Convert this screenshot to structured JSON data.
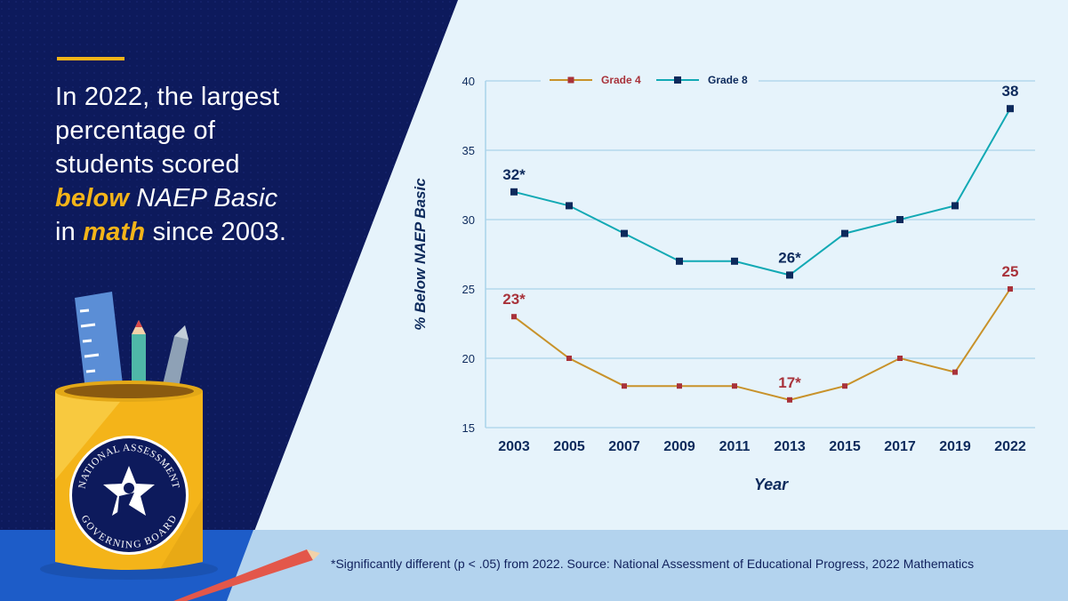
{
  "headline": {
    "line1": "In 2022, the largest",
    "line2": "percentage of",
    "line3": "students scored",
    "below_word": "below",
    "naep_basic": " NAEP Basic",
    "in_word": "in ",
    "math_word": "math",
    "since": " since 2003."
  },
  "logo": {
    "top_text": "NATIONAL ASSESSMENT",
    "bottom_text": "GOVERNING BOARD"
  },
  "footnote": "*Significantly different (p < .05) from 2022.  Source: National Assessment of Educational Progress, 2022 Mathematics",
  "colors": {
    "navy": "#0d1a5c",
    "gold": "#f4b419",
    "grade4": "#c8922a",
    "grade8": "#12a9b4",
    "grade4_label": "#a8323a",
    "grade8_label": "#0d2a5c",
    "grid": "#a9d3ea",
    "chart_bg": "#e6f3fb"
  },
  "chart_data": {
    "type": "line",
    "xlabel": "Year",
    "ylabel": "% Below NAEP Basic",
    "ylim": [
      15,
      40
    ],
    "yticks": [
      15,
      20,
      25,
      30,
      35,
      40
    ],
    "categories": [
      "2003",
      "2005",
      "2007",
      "2009",
      "2011",
      "2013",
      "2015",
      "2017",
      "2019",
      "2022"
    ],
    "legend_position": "top",
    "grid": true,
    "series": [
      {
        "name": "Grade 4",
        "color": "#c8922a",
        "values": [
          23,
          20,
          18,
          18,
          18,
          17,
          18,
          20,
          19,
          25
        ],
        "annotations": [
          {
            "index": 0,
            "text": "23*"
          },
          {
            "index": 5,
            "text": "17*"
          },
          {
            "index": 9,
            "text": "25"
          }
        ]
      },
      {
        "name": "Grade 8",
        "color": "#12a9b4",
        "values": [
          32,
          31,
          29,
          27,
          27,
          26,
          29,
          30,
          31,
          38
        ],
        "annotations": [
          {
            "index": 0,
            "text": "32*"
          },
          {
            "index": 5,
            "text": "26*"
          },
          {
            "index": 9,
            "text": "38"
          }
        ]
      }
    ]
  }
}
